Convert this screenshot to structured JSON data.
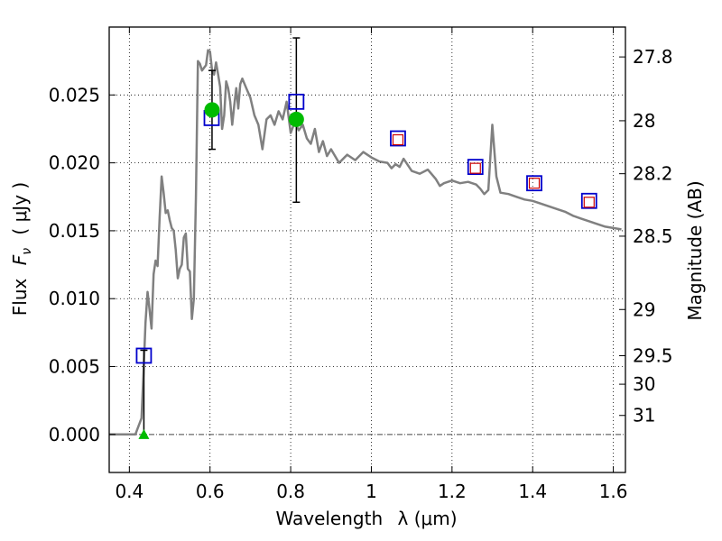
{
  "chart_data": {
    "type": "line",
    "xlabel_main": "Wavelength",
    "xlabel_sym": "λ (μm)",
    "ylabel_main": "Flux",
    "ylabel_sym": "F",
    "ylabel_sub": "ν",
    "ylabel_unit": "( μJy )",
    "y2label": "Magnitude (AB)",
    "xlim": [
      0.35,
      1.63
    ],
    "ylim": [
      -0.0028,
      0.03
    ],
    "grid": true,
    "x_ticks": [
      0.4,
      0.6,
      0.8,
      1.0,
      1.2,
      1.4,
      1.6
    ],
    "x_tick_labels": [
      "0.4",
      "0.6",
      "0.8",
      "1",
      "1.2",
      "1.4",
      "1.6"
    ],
    "y_ticks": [
      0.0,
      0.005,
      0.01,
      0.015,
      0.02,
      0.025
    ],
    "y_tick_labels": [
      "0.000",
      "0.005",
      "0.010",
      "0.015",
      "0.020",
      "0.025"
    ],
    "y2_ticks": [
      {
        "label": "27.8",
        "flux": 0.0278
      },
      {
        "label": "28",
        "flux": 0.0231
      },
      {
        "label": "28.2",
        "flux": 0.0192
      },
      {
        "label": "28.5",
        "flux": 0.0146
      },
      {
        "label": "29",
        "flux": 0.0092
      },
      {
        "label": "29.5",
        "flux": 0.0058
      },
      {
        "label": "30",
        "flux": 0.0037
      },
      {
        "label": "31",
        "flux": 0.0014
      }
    ],
    "colors": {
      "spectrum": "#808080",
      "model_box": "#0000cc",
      "obs_box": "#cc0000",
      "detection": "#00bb00",
      "errorbar": "#000000",
      "zero_line": "#444444"
    },
    "series": [
      {
        "type": "line",
        "x": [
          0.35,
          0.415,
          0.43,
          0.435,
          0.44,
          0.445,
          0.45,
          0.455,
          0.46,
          0.465,
          0.47,
          0.475,
          0.48,
          0.485,
          0.49,
          0.495,
          0.5,
          0.505,
          0.51,
          0.515,
          0.52,
          0.525,
          0.53,
          0.535,
          0.54,
          0.545,
          0.55,
          0.555,
          0.56,
          0.565,
          0.57,
          0.575,
          0.58,
          0.585,
          0.59,
          0.595,
          0.6,
          0.605,
          0.61,
          0.615,
          0.62,
          0.625,
          0.63,
          0.635,
          0.64,
          0.645,
          0.65,
          0.655,
          0.66,
          0.665,
          0.67,
          0.675,
          0.68,
          0.69,
          0.7,
          0.71,
          0.72,
          0.73,
          0.74,
          0.75,
          0.76,
          0.77,
          0.78,
          0.79,
          0.8,
          0.81,
          0.82,
          0.83,
          0.84,
          0.85,
          0.86,
          0.87,
          0.88,
          0.89,
          0.9,
          0.92,
          0.94,
          0.96,
          0.98,
          1.0,
          1.02,
          1.04,
          1.05,
          1.06,
          1.07,
          1.08,
          1.1,
          1.12,
          1.14,
          1.16,
          1.17,
          1.18,
          1.2,
          1.22,
          1.24,
          1.26,
          1.27,
          1.28,
          1.29,
          1.3,
          1.31,
          1.32,
          1.34,
          1.36,
          1.38,
          1.4,
          1.42,
          1.44,
          1.46,
          1.48,
          1.5,
          1.52,
          1.54,
          1.56,
          1.58,
          1.6,
          1.62
        ],
        "y": [
          0.0,
          0.0,
          0.0012,
          0.0045,
          0.0082,
          0.0105,
          0.0092,
          0.0078,
          0.0118,
          0.0128,
          0.0124,
          0.016,
          0.019,
          0.0178,
          0.0163,
          0.0165,
          0.0158,
          0.0152,
          0.015,
          0.0136,
          0.0115,
          0.0122,
          0.0125,
          0.0145,
          0.0148,
          0.0122,
          0.012,
          0.0085,
          0.01,
          0.0175,
          0.0275,
          0.0273,
          0.0268,
          0.027,
          0.0272,
          0.0283,
          0.0282,
          0.0268,
          0.0265,
          0.0274,
          0.0265,
          0.0256,
          0.0225,
          0.0235,
          0.026,
          0.0255,
          0.0245,
          0.0228,
          0.0242,
          0.0255,
          0.024,
          0.0258,
          0.0262,
          0.0255,
          0.0248,
          0.0235,
          0.0228,
          0.021,
          0.0232,
          0.0235,
          0.0228,
          0.0238,
          0.0232,
          0.0245,
          0.0222,
          0.023,
          0.0224,
          0.0228,
          0.0218,
          0.0214,
          0.0225,
          0.0208,
          0.0216,
          0.0205,
          0.021,
          0.02,
          0.0206,
          0.0202,
          0.0208,
          0.0204,
          0.0201,
          0.02,
          0.0196,
          0.0199,
          0.0197,
          0.0203,
          0.0194,
          0.0192,
          0.0195,
          0.0188,
          0.0183,
          0.0185,
          0.0187,
          0.0185,
          0.0186,
          0.0184,
          0.0181,
          0.0177,
          0.018,
          0.0228,
          0.019,
          0.0178,
          0.0177,
          0.0175,
          0.0173,
          0.0172,
          0.017,
          0.0168,
          0.0166,
          0.0164,
          0.0161,
          0.0159,
          0.0157,
          0.0155,
          0.0153,
          0.0152,
          0.0151
        ]
      },
      {
        "type": "model_points",
        "name": "",
        "x": [
          0.436,
          0.604,
          0.814,
          1.066,
          1.258,
          1.404,
          1.54
        ],
        "y": [
          0.0058,
          0.0233,
          0.0245,
          0.0218,
          0.0197,
          0.0185,
          0.0172
        ]
      },
      {
        "type": "observed_points",
        "name": "",
        "x": [
          1.066,
          1.258,
          1.404,
          1.54
        ],
        "y": [
          0.0217,
          0.0196,
          0.0185,
          0.0171
        ]
      },
      {
        "type": "detections",
        "name": "",
        "x": [
          0.605,
          0.814
        ],
        "y": [
          0.0239,
          0.0232
        ],
        "err_low": [
          0.021,
          0.0171
        ],
        "err_high": [
          0.0268,
          0.0292
        ]
      },
      {
        "type": "upper_limit",
        "name": "",
        "x": [
          0.436
        ],
        "y": [
          0.0
        ],
        "err_high": [
          0.0062
        ]
      }
    ]
  }
}
